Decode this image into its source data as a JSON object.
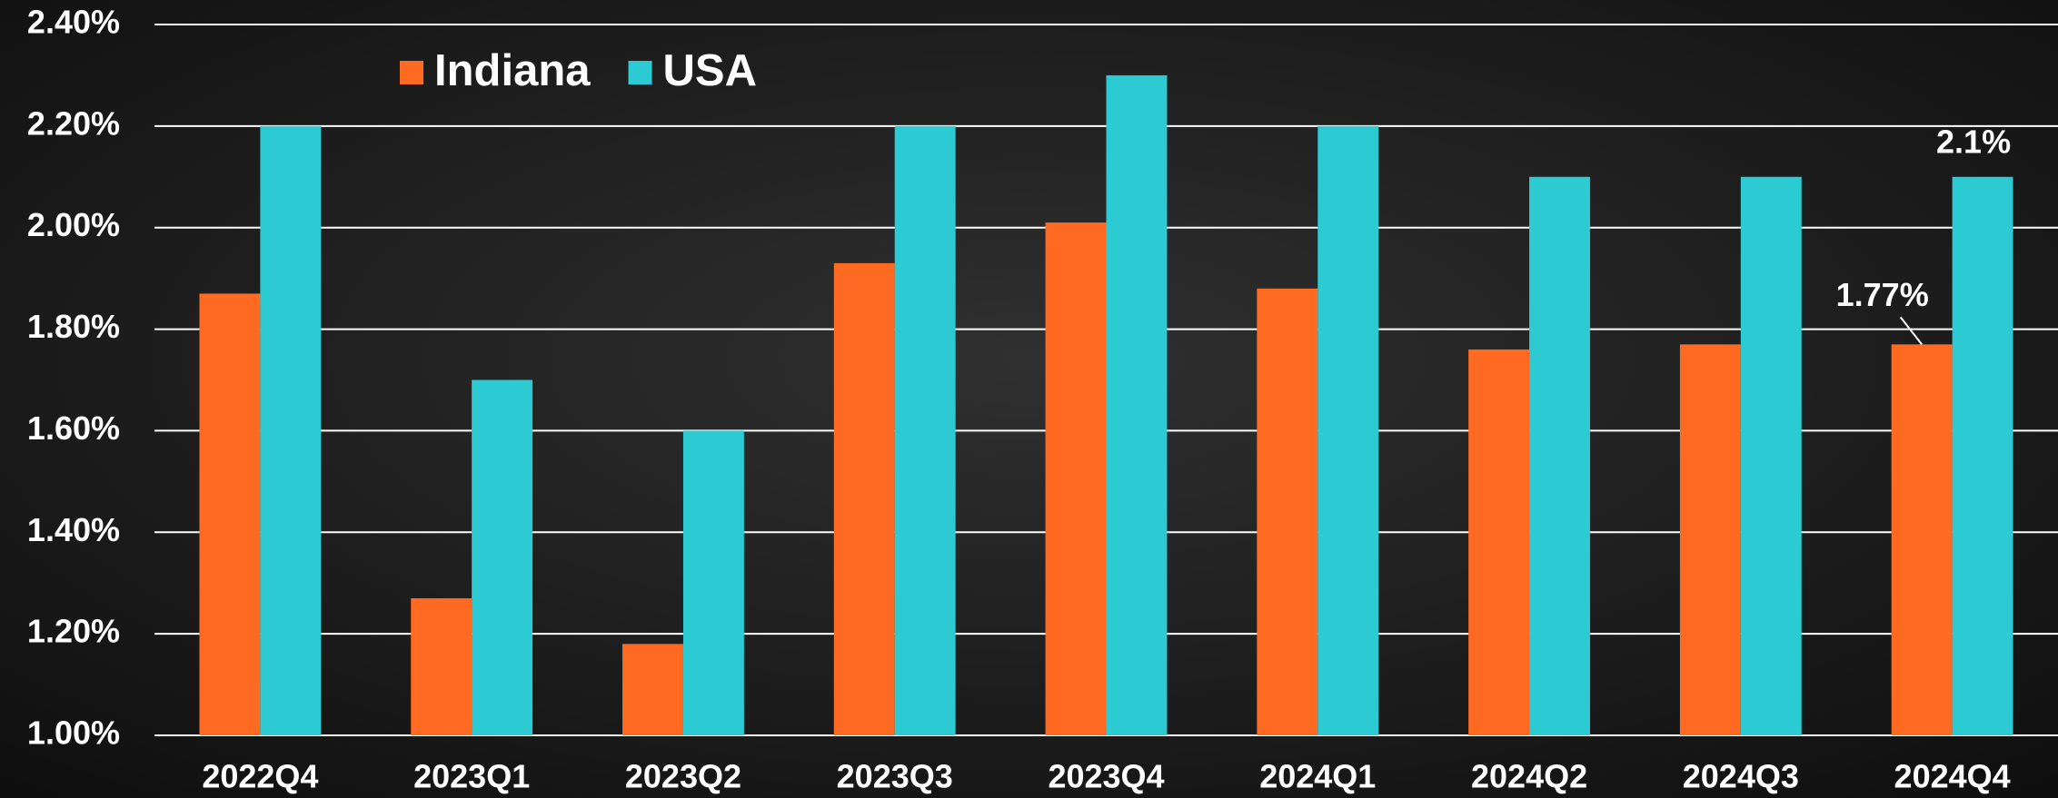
{
  "chart_data": {
    "type": "bar",
    "categories": [
      "2022Q4",
      "2023Q1",
      "2023Q2",
      "2023Q3",
      "2023Q4",
      "2024Q1",
      "2024Q2",
      "2024Q3",
      "2024Q4"
    ],
    "series": [
      {
        "name": "Indiana",
        "color": "#ff6a22",
        "values": [
          1.87,
          1.27,
          1.18,
          1.93,
          2.01,
          1.88,
          1.76,
          1.77,
          1.77
        ],
        "value_labels": [
          null,
          null,
          null,
          null,
          null,
          null,
          null,
          null,
          "1.77%"
        ]
      },
      {
        "name": "USA",
        "color": "#2ccbd3",
        "values": [
          2.2,
          1.7,
          1.6,
          2.2,
          2.3,
          2.2,
          2.1,
          2.1,
          2.1
        ],
        "value_labels": [
          null,
          null,
          null,
          null,
          null,
          null,
          null,
          null,
          "2.1%"
        ]
      }
    ],
    "ylim": [
      1,
      2.4
    ],
    "yticks": [
      {
        "value": 1,
        "label": "1.00%"
      },
      {
        "value": 1.2,
        "label": "1.20%"
      },
      {
        "value": 1.4,
        "label": "1.40%"
      },
      {
        "value": 1.6,
        "label": "1.60%"
      },
      {
        "value": 1.8,
        "label": "1.80%"
      },
      {
        "value": 2,
        "label": "2.00%"
      },
      {
        "value": 2.2,
        "label": "2.20%"
      },
      {
        "value": 2.4,
        "label": "2.40%"
      }
    ],
    "grid": true,
    "legend": "top-left"
  }
}
